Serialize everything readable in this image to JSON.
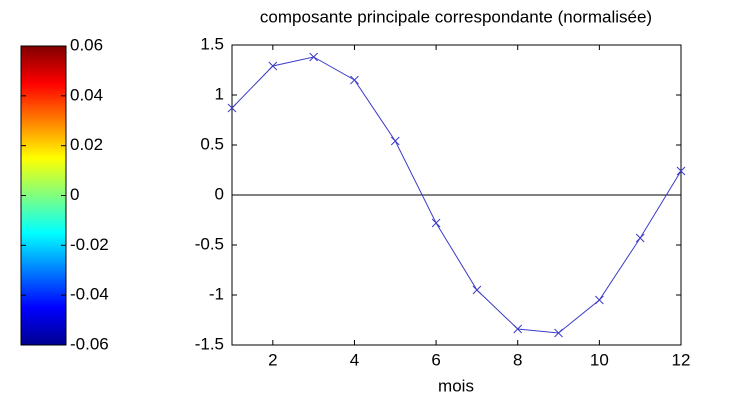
{
  "chart_data": [
    {
      "type": "colorbar",
      "colormap": "jet",
      "clim": [
        -0.06,
        0.06
      ],
      "ticks": [
        0.06,
        0.04,
        0.02,
        0,
        -0.02,
        -0.04,
        -0.06
      ]
    },
    {
      "type": "line",
      "title": "composante principale correspondante (normalisée)",
      "x_label": "mois",
      "x": [
        1,
        2,
        3,
        4,
        5,
        6,
        7,
        8,
        9,
        10,
        11,
        12
      ],
      "series": [
        {
          "color": "#3c3cc8",
          "marker": "x",
          "values": [
            0.87,
            1.29,
            1.38,
            1.15,
            0.54,
            -0.28,
            -0.95,
            -1.34,
            -1.38,
            -1.05,
            -0.43,
            0.24
          ]
        }
      ],
      "reference_line": 0,
      "xlim": [
        1,
        12
      ],
      "xticks": [
        2,
        4,
        6,
        8,
        10,
        12
      ],
      "ylim": [
        -1.5,
        1.5
      ],
      "yticks": [
        1.5,
        1,
        0.5,
        0,
        -0.5,
        -1,
        -1.5
      ]
    }
  ]
}
